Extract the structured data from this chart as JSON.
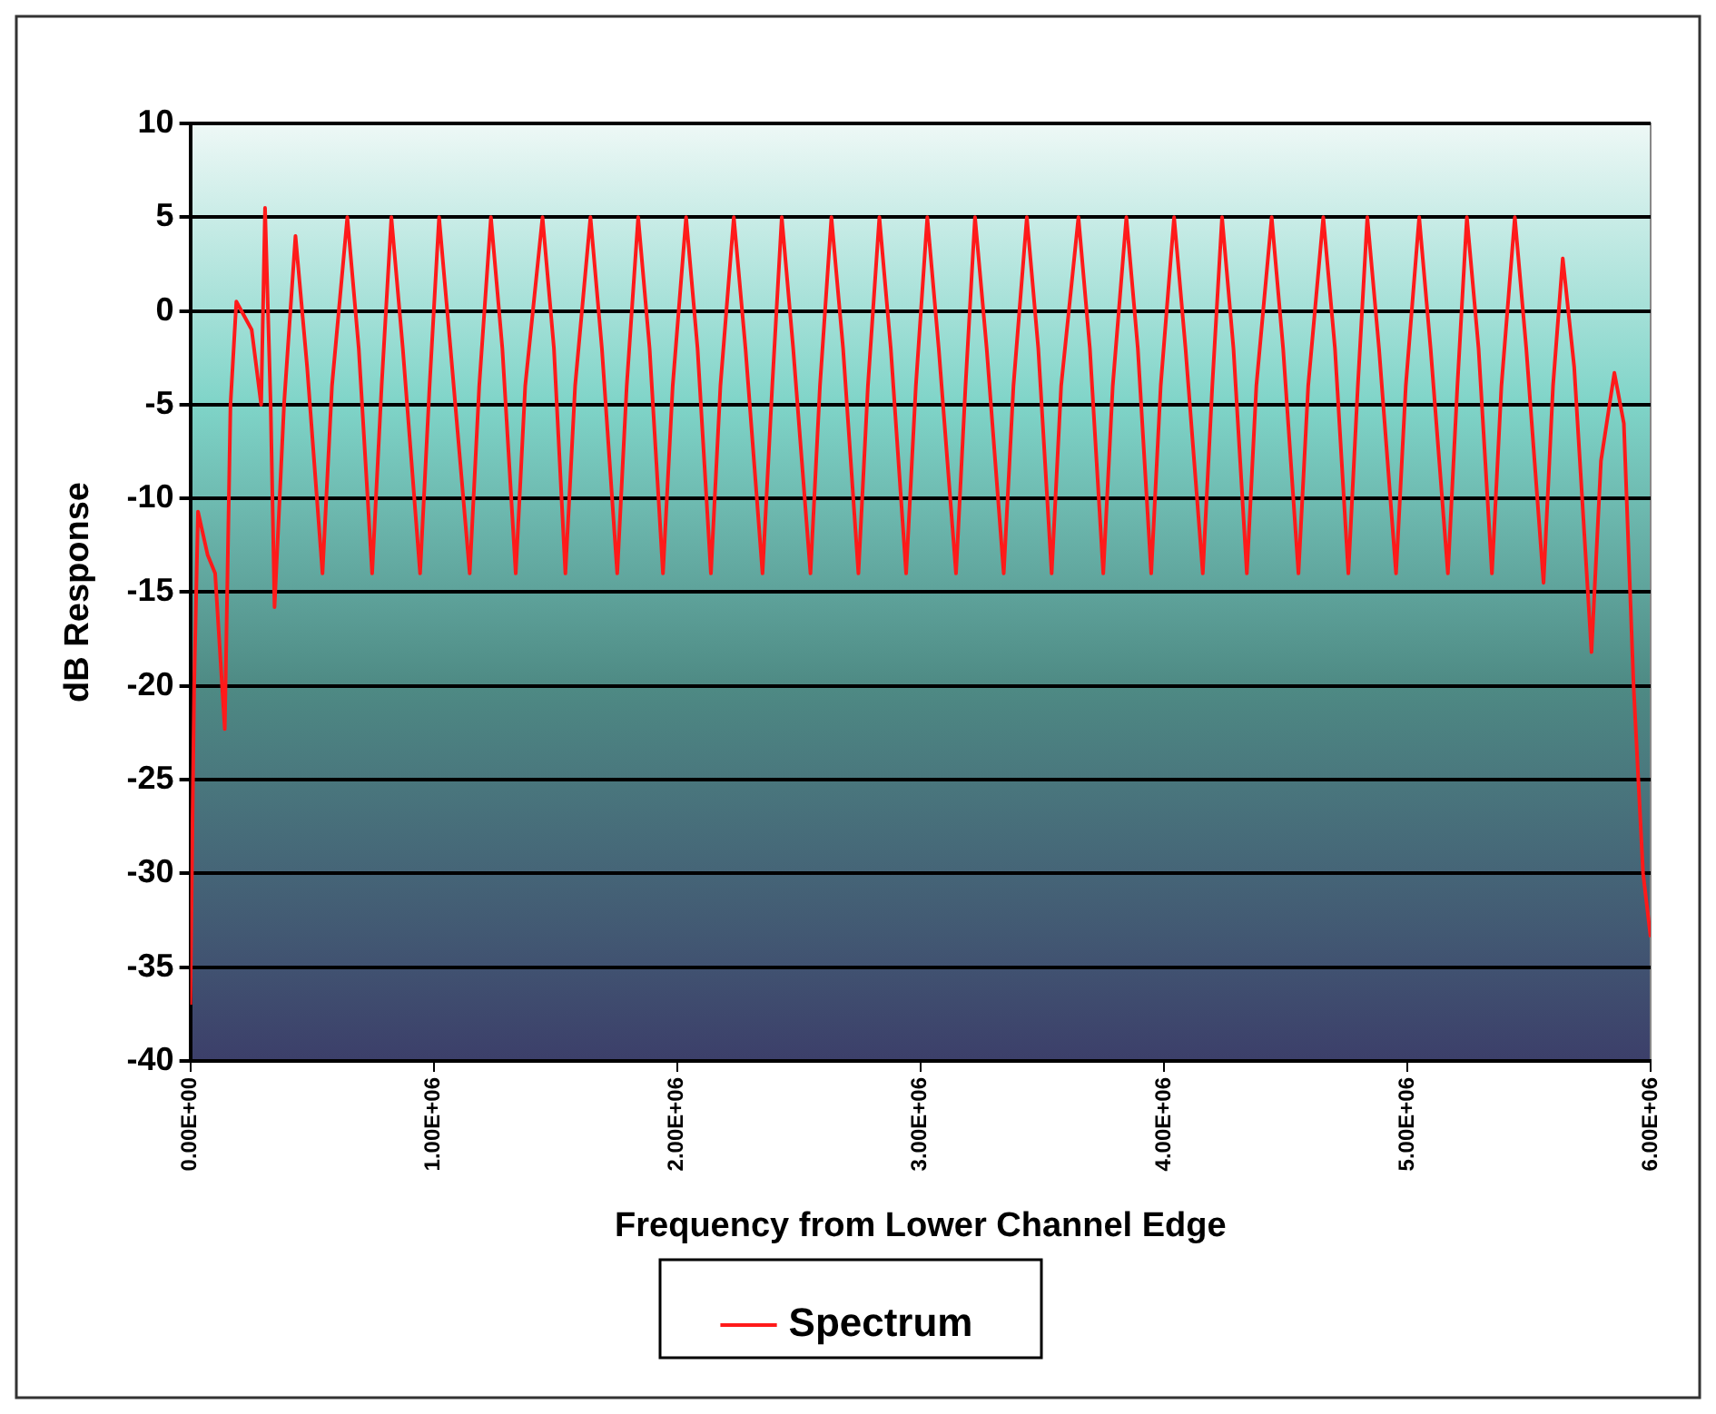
{
  "chart_data": {
    "type": "line",
    "xlabel": "Frequency from Lower Channel Edge",
    "ylabel": "dB Response",
    "x": [
      0,
      15700,
      31500,
      70800,
      102000,
      141500,
      165000,
      189000,
      252000,
      291000,
      307000,
      330000,
      346000,
      385000,
      432000,
      480000,
      543000,
      582000,
      645000,
      692000,
      747000,
      786000,
      826000,
      873000,
      944000,
      983000,
      1022000,
      1069000,
      1148000,
      1187000,
      1235000,
      1282000,
      1337000,
      1376000,
      1447000,
      1494000,
      1541000,
      1581000,
      1644000,
      1691000,
      1754000,
      1793000,
      1840000,
      1887000,
      1942000,
      1982000,
      2037000,
      2084000,
      2139000,
      2178000,
      2233000,
      2281000,
      2351000,
      2391000,
      2430000,
      2477000,
      2548000,
      2587000,
      2634000,
      2682000,
      2745000,
      2784000,
      2831000,
      2878000,
      2941000,
      2981000,
      3028000,
      3075000,
      3146000,
      3185000,
      3224000,
      3272000,
      3342000,
      3382000,
      3437000,
      3484000,
      3539000,
      3578000,
      3649000,
      3696000,
      3751000,
      3790000,
      3846000,
      3893000,
      3948000,
      3987000,
      4042000,
      4089000,
      4160000,
      4199000,
      4239000,
      4286000,
      4341000,
      4380000,
      4443000,
      4490000,
      4553000,
      4593000,
      4655000,
      4703000,
      4758000,
      4797000,
      4836000,
      4884000,
      4954000,
      4994000,
      5049000,
      5096000,
      5167000,
      5206000,
      5245000,
      5293000,
      5348000,
      5387000,
      5442000,
      5489000,
      5560000,
      5599000,
      5639000,
      5686000,
      5757000,
      5796000,
      5851000,
      5890000,
      5930000,
      5969000,
      6000000
    ],
    "series": [
      {
        "name": "Spectrum",
        "color": "#ff1a1a",
        "values": [
          -37,
          -20,
          -10.7,
          -13,
          -14,
          -22.3,
          -5,
          0.5,
          -1,
          -5,
          5.5,
          -5,
          -15.8,
          -5,
          4,
          -3,
          -14,
          -4,
          5,
          -2,
          -14,
          -4,
          5,
          -2,
          -14,
          -4,
          5,
          -2,
          -14,
          -4,
          5,
          -2,
          -14,
          -4,
          5,
          -2,
          -14,
          -4,
          5,
          -2,
          -14,
          -4,
          5,
          -2,
          -14,
          -4,
          5,
          -2,
          -14,
          -4,
          5,
          -2,
          -14,
          -4,
          5,
          -2,
          -14,
          -4,
          5,
          -2,
          -14,
          -4,
          5,
          -2,
          -14,
          -4,
          5,
          -2,
          -14,
          -4,
          5,
          -2,
          -14,
          -4,
          5,
          -2,
          -14,
          -4,
          5,
          -2,
          -14,
          -4,
          5,
          -2,
          -14,
          -4,
          5,
          -2,
          -14,
          -4,
          5,
          -2,
          -14,
          -4,
          5,
          -2,
          -14,
          -4,
          5,
          -2,
          -14,
          -4,
          5,
          -2,
          -14,
          -4,
          5,
          -2,
          -14,
          -4,
          5,
          -2,
          -14,
          -4,
          5,
          -2,
          -14.5,
          -4,
          2.8,
          -3,
          -18.2,
          -8,
          -3.3,
          -6,
          -20,
          -30,
          -33.4
        ]
      }
    ],
    "xlim": [
      0,
      6000000
    ],
    "xticks": [
      {
        "value": 0,
        "label": "0.00E+00"
      },
      {
        "value": 1000000,
        "label": "1.00E+06"
      },
      {
        "value": 2000000,
        "label": "2.00E+06"
      },
      {
        "value": 3000000,
        "label": "3.00E+06"
      },
      {
        "value": 4000000,
        "label": "4.00E+06"
      },
      {
        "value": 5000000,
        "label": "5.00E+06"
      },
      {
        "value": 6000000,
        "label": "6.00E+06"
      }
    ],
    "ylim": [
      -40,
      10
    ],
    "yticks": [
      -40,
      -35,
      -30,
      -25,
      -20,
      -15,
      -10,
      -5,
      0,
      5,
      10
    ],
    "grid": "y",
    "legend": "bottom",
    "line_style": "solid",
    "marker": "none"
  }
}
